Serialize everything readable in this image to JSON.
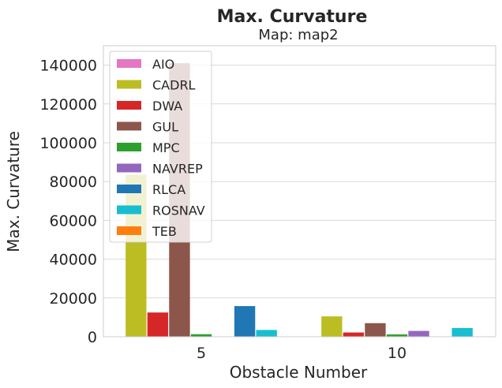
{
  "chart_data": {
    "type": "bar",
    "title": "Max. Curvature",
    "subtitle": "Map: map2",
    "xlabel": "Obstacle Number",
    "ylabel": "Max. Curvature",
    "categories": [
      "5",
      "10"
    ],
    "ylim": [
      0,
      150000
    ],
    "yticks": [
      0,
      20000,
      40000,
      60000,
      80000,
      100000,
      120000,
      140000
    ],
    "ytick_labels": [
      "0",
      "20000",
      "40000",
      "60000",
      "80000",
      "100000",
      "120000",
      "140000"
    ],
    "grid": true,
    "legend_position": "top-left",
    "series": [
      {
        "name": "AIO",
        "color": "#e377c2",
        "values": [
          0,
          0
        ]
      },
      {
        "name": "CADRL",
        "color": "#bcbd22",
        "values": [
          83500,
          10500
        ]
      },
      {
        "name": "DWA",
        "color": "#d62728",
        "values": [
          12500,
          2200
        ]
      },
      {
        "name": "GUL",
        "color": "#8c564b",
        "values": [
          141000,
          7000
        ]
      },
      {
        "name": "MPC",
        "color": "#2ca02c",
        "values": [
          1300,
          1200
        ]
      },
      {
        "name": "NAVREP",
        "color": "#9467bd",
        "values": [
          0,
          3000
        ]
      },
      {
        "name": "RLCA",
        "color": "#1f77b4",
        "values": [
          15800,
          0
        ]
      },
      {
        "name": "ROSNAV",
        "color": "#17becf",
        "values": [
          3500,
          4500
        ]
      },
      {
        "name": "TEB",
        "color": "#ff7f0e",
        "values": [
          0,
          0
        ]
      }
    ]
  }
}
